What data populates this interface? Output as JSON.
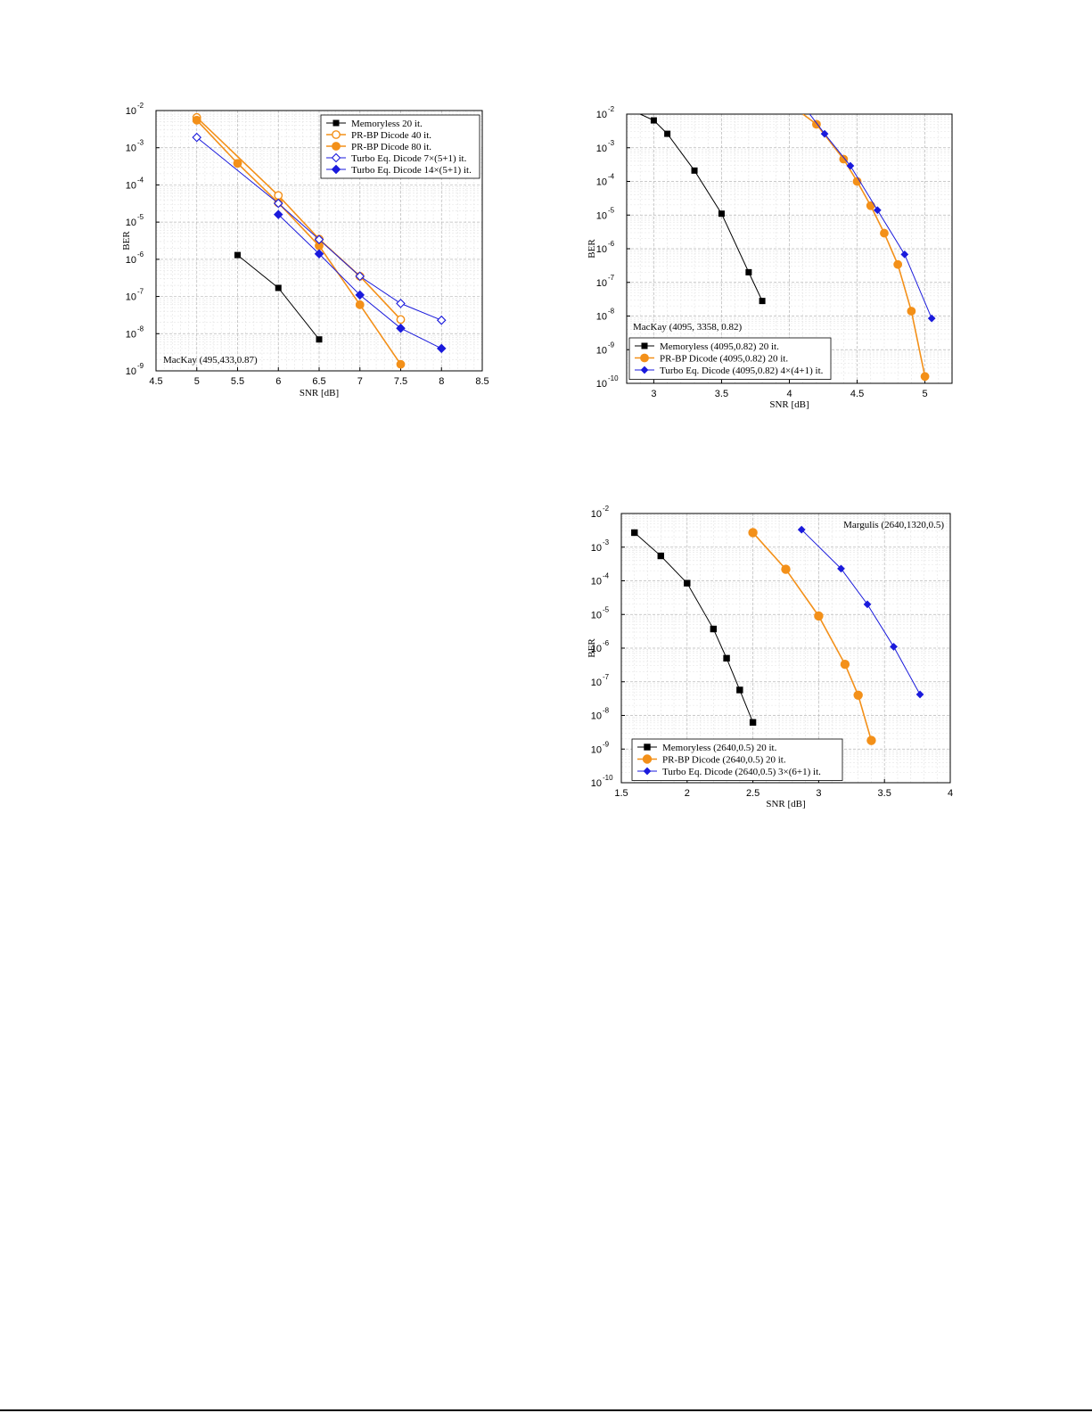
{
  "colors": {
    "black": "#000000",
    "orange": "#f39019",
    "blue": "#1a1adc",
    "grid": "#c8c8c8"
  },
  "chart_data": [
    {
      "type": "line",
      "title": "",
      "xlabel": "SNR [dB]",
      "ylabel": "BER",
      "xlim": [
        4.5,
        8.5
      ],
      "ylim_exponent": [
        -9,
        -2
      ],
      "yscale": "log",
      "xticks": [
        "4.5",
        "5",
        "5.5",
        "6",
        "6.5",
        "7",
        "7.5",
        "8",
        "8.5"
      ],
      "yticks": [
        "-9",
        "-8",
        "-7",
        "-6",
        "-5",
        "-4",
        "-3",
        "-2"
      ],
      "grid": true,
      "legend_position": "top-right",
      "annotation": "MacKay (495,433,0.87)",
      "series": [
        {
          "name": "Memoryless 20 it.",
          "color": "#000000",
          "marker": "square",
          "filled": true,
          "x": [
            5.5,
            6.0,
            6.5
          ],
          "y": [
            1.3e-06,
            1.7e-07,
            7e-09
          ]
        },
        {
          "name": "PR-BP Dicode 40 it.",
          "color": "#f39019",
          "marker": "circle",
          "filled": false,
          "x": [
            5.0,
            6.0,
            6.5,
            7.0,
            7.5
          ],
          "y": [
            0.0065,
            5.2e-05,
            3.5e-06,
            3.5e-07,
            2.4e-08
          ]
        },
        {
          "name": "PR-BP Dicode 80 it.",
          "color": "#f39019",
          "marker": "circle",
          "filled": true,
          "x": [
            5.0,
            5.5,
            6.0,
            6.5,
            7.0,
            7.5
          ],
          "y": [
            0.0055,
            0.00038,
            3.3e-05,
            2.3e-06,
            6e-08,
            1.5e-09
          ]
        },
        {
          "name": "Turbo Eq. Dicode 7×(5+1) it.",
          "color": "#1a1adc",
          "marker": "diamond",
          "filled": false,
          "x": [
            5.0,
            6.0,
            6.5,
            7.0,
            7.5,
            8.0
          ],
          "y": [
            0.0019,
            3.2e-05,
            3.4e-06,
            3.5e-07,
            6.5e-08,
            2.3e-08
          ]
        },
        {
          "name": "Turbo Eq. Dicode 14×(5+1) it.",
          "color": "#1a1adc",
          "marker": "diamond",
          "filled": true,
          "x": [
            6.0,
            6.5,
            7.0,
            7.5,
            8.0
          ],
          "y": [
            1.6e-05,
            1.4e-06,
            1.1e-07,
            1.4e-08,
            4e-09
          ]
        }
      ]
    },
    {
      "type": "line",
      "title": "",
      "xlabel": "SNR [dB]",
      "ylabel": "BER",
      "xlim": [
        2.8,
        5.2
      ],
      "ylim_exponent": [
        -10,
        -2
      ],
      "yscale": "log",
      "xticks": [
        "3",
        "3.5",
        "4",
        "4.5",
        "5"
      ],
      "xtick_values": [
        3,
        3.5,
        4,
        4.5,
        5
      ],
      "yticks": [
        "-10",
        "-9",
        "-8",
        "-7",
        "-6",
        "-5",
        "-4",
        "-3",
        "-2"
      ],
      "grid": true,
      "legend_position": "bottom-left",
      "annotation": "MacKay (4095, 3358, 0.82)",
      "series": [
        {
          "name": "Memoryless (4095,0.82) 20 it.",
          "color": "#000000",
          "marker": "square",
          "filled": true,
          "x": [
            2.9,
            3.0,
            3.1,
            3.3,
            3.5,
            3.7,
            3.8
          ],
          "y": [
            0.01,
            0.0065,
            0.0026,
            0.00021,
            1.1e-05,
            2e-07,
            2.8e-08
          ]
        },
        {
          "name": "PR-BP Dicode (4095,0.82) 20 it.",
          "color": "#f39019",
          "marker": "circle",
          "filled": true,
          "x": [
            4.1,
            4.2,
            4.4,
            4.5,
            4.6,
            4.7,
            4.8,
            4.9,
            5.0
          ],
          "y": [
            0.01,
            0.005,
            0.00046,
            0.0001,
            1.9e-05,
            2.9e-06,
            3.4e-07,
            1.4e-08,
            1.6e-10
          ]
        },
        {
          "name": "Turbo Eq. Dicode (4095,0.82) 4×(4+1) it.",
          "color": "#1a1adc",
          "marker": "diamond",
          "filled": true,
          "x": [
            4.15,
            4.26,
            4.45,
            4.65,
            4.85,
            5.05
          ],
          "y": [
            0.01,
            0.0026,
            0.00029,
            1.4e-05,
            6.8e-07,
            8.5e-09
          ]
        }
      ]
    },
    {
      "type": "line",
      "title": "",
      "xlabel": "SNR [dB]",
      "ylabel": "BER",
      "xlim": [
        1.5,
        4.0
      ],
      "ylim_exponent": [
        -10,
        -2
      ],
      "yscale": "log",
      "xticks": [
        "1.5",
        "2",
        "2.5",
        "3",
        "3.5",
        "4"
      ],
      "xtick_values": [
        1.5,
        2,
        2.5,
        3,
        3.5,
        4
      ],
      "yticks": [
        "-10",
        "-9",
        "-8",
        "-7",
        "-6",
        "-5",
        "-4",
        "-3",
        "-2"
      ],
      "grid": true,
      "legend_position": "bottom-left",
      "annotation": "Margulis (2640,1320,0.5)",
      "series": [
        {
          "name": "Memoryless (2640,0.5) 20 it.",
          "color": "#000000",
          "marker": "square",
          "filled": true,
          "x": [
            1.6,
            1.8,
            2.0,
            2.2,
            2.3,
            2.4,
            2.5
          ],
          "y": [
            0.0027,
            0.00055,
            8.5e-05,
            3.7e-06,
            5e-07,
            5.7e-08,
            6.2e-09
          ]
        },
        {
          "name": "PR-BP Dicode  (2640,0.5) 20 it.",
          "color": "#f39019",
          "marker": "circle",
          "filled": true,
          "x": [
            2.5,
            2.75,
            3.0,
            3.2,
            3.3,
            3.4
          ],
          "y": [
            0.0027,
            0.00022,
            9e-06,
            3.3e-07,
            4e-08,
            1.8e-09
          ]
        },
        {
          "name": "Turbo Eq. Dicode (2640,0.5) 3×(6+1) it.",
          "color": "#1a1adc",
          "marker": "diamond",
          "filled": true,
          "x": [
            2.87,
            3.17,
            3.37,
            3.57,
            3.77
          ],
          "y": [
            0.0033,
            0.00023,
            2e-05,
            1.1e-06,
            4.2e-08
          ]
        }
      ]
    }
  ]
}
